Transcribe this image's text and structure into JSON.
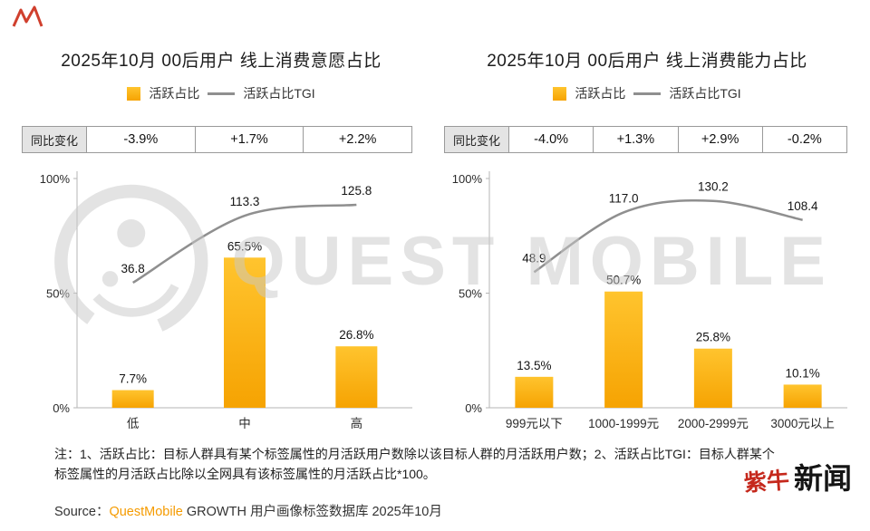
{
  "page": {
    "watermark_text": "QUEST MOBILE",
    "footer_note": "注：1、活跃占比：目标人群具有某个标签属性的月活跃用户数除以该目标人群的月活跃用户数；2、活跃占比TGI：目标人群某个标签属性的月活跃占比除以全网具有该标签属性的月活跃占比*100。",
    "source_prefix": "Source：",
    "source_brand": "QuestMobile",
    "source_rest": " GROWTH 用户画像标签数据库 2025年10月",
    "brand_red": "紫牛",
    "brand_black": "新闻"
  },
  "colors": {
    "bar_top": "#ffc42e",
    "bar_bottom": "#f6a302",
    "line": "#8f8f8f",
    "axis": "#b5b5b5",
    "accent_orange": "#f59b00",
    "brand_red": "#c5281c",
    "watermark_gray": "#c9c9c9"
  },
  "chart_data": [
    {
      "type": "bar+line",
      "title": "2025年10月 00后用户 线上消费意愿占比",
      "yoy": {
        "label": "同比变化",
        "values": [
          "-3.9%",
          "+1.7%",
          "+2.2%"
        ]
      },
      "categories": [
        "低",
        "中",
        "高"
      ],
      "series": [
        {
          "name": "活跃占比",
          "type": "bar",
          "values": [
            7.7,
            65.5,
            26.8
          ],
          "labels": [
            "7.7%",
            "65.5%",
            "26.8%"
          ]
        },
        {
          "name": "活跃占比TGI",
          "type": "line",
          "values": [
            36.8,
            113.3,
            125.8
          ],
          "labels": [
            "36.8",
            "113.3",
            "125.8"
          ]
        }
      ],
      "y_ticks": [
        "100%",
        "50%",
        "0%"
      ],
      "ylim": [
        0,
        100
      ],
      "grid": false,
      "legend_position": "top"
    },
    {
      "type": "bar+line",
      "title": "2025年10月 00后用户 线上消费能力占比",
      "yoy": {
        "label": "同比变化",
        "values": [
          "-4.0%",
          "+1.3%",
          "+2.9%",
          "-0.2%"
        ]
      },
      "categories": [
        "999元以下",
        "1000-1999元",
        "2000-2999元",
        "3000元以上"
      ],
      "series": [
        {
          "name": "活跃占比",
          "type": "bar",
          "values": [
            13.5,
            50.7,
            25.8,
            10.1
          ],
          "labels": [
            "13.5%",
            "50.7%",
            "25.8%",
            "10.1%"
          ]
        },
        {
          "name": "活跃占比TGI",
          "type": "line",
          "values": [
            48.9,
            117.0,
            130.2,
            108.4
          ],
          "labels": [
            "48.9",
            "117.0",
            "130.2",
            "108.4"
          ]
        }
      ],
      "y_ticks": [
        "100%",
        "50%",
        "0%"
      ],
      "ylim": [
        0,
        100
      ],
      "grid": false,
      "legend_position": "top"
    }
  ]
}
